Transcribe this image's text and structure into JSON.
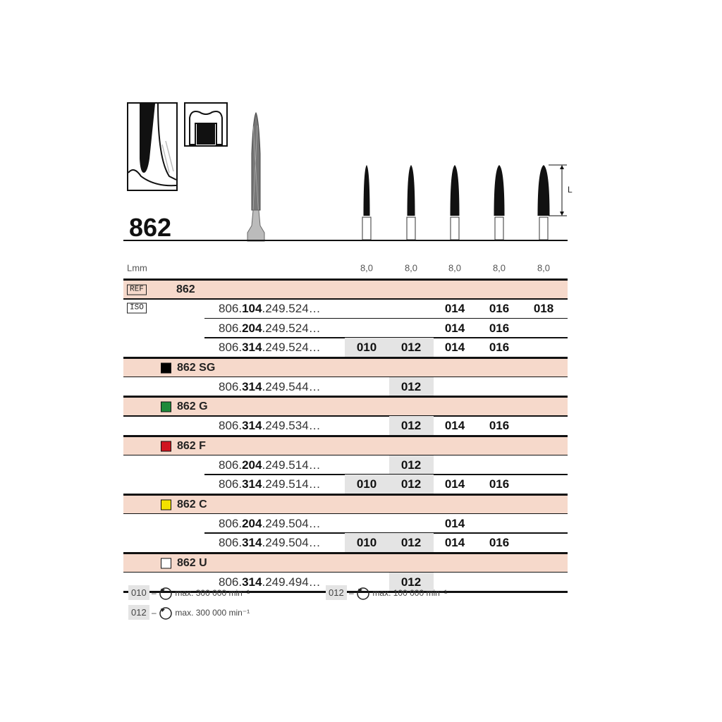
{
  "product": {
    "title": "862",
    "length_label": "L"
  },
  "table": {
    "length_header": "Lmm",
    "lengths": [
      "8,0",
      "8,0",
      "8,0",
      "8,0",
      "8,0"
    ],
    "ref_label": "REF",
    "iso_label": "ISO",
    "groups": [
      {
        "name": "862",
        "color": null,
        "rows": [
          {
            "prefix": "806.",
            "bold": "104",
            "suffix": ".249.524…",
            "sizes": [
              "",
              "",
              "014",
              "016",
              "018"
            ],
            "shaded": []
          },
          {
            "prefix": "806.",
            "bold": "204",
            "suffix": ".249.524…",
            "sizes": [
              "",
              "",
              "014",
              "016",
              ""
            ],
            "shaded": []
          },
          {
            "prefix": "806.",
            "bold": "314",
            "suffix": ".249.524…",
            "sizes": [
              "010",
              "012",
              "014",
              "016",
              ""
            ],
            "shaded": [
              0,
              1
            ]
          }
        ]
      },
      {
        "name": "862 SG",
        "color": "#000000",
        "rows": [
          {
            "prefix": "806.",
            "bold": "314",
            "suffix": ".249.544…",
            "sizes": [
              "",
              "012",
              "",
              "",
              ""
            ],
            "shaded": [
              1
            ]
          }
        ]
      },
      {
        "name": "862 G",
        "color": "#1e8a3a",
        "rows": [
          {
            "prefix": "806.",
            "bold": "314",
            "suffix": ".249.534…",
            "sizes": [
              "",
              "012",
              "014",
              "016",
              ""
            ],
            "shaded": [
              1
            ]
          }
        ]
      },
      {
        "name": "862 F",
        "color": "#d0151f",
        "rows": [
          {
            "prefix": "806.",
            "bold": "204",
            "suffix": ".249.514…",
            "sizes": [
              "",
              "012",
              "",
              "",
              ""
            ],
            "shaded": [
              1
            ]
          },
          {
            "prefix": "806.",
            "bold": "314",
            "suffix": ".249.514…",
            "sizes": [
              "010",
              "012",
              "014",
              "016",
              ""
            ],
            "shaded": [
              0,
              1
            ]
          }
        ]
      },
      {
        "name": "862 C",
        "color": "#f2e200",
        "rows": [
          {
            "prefix": "806.",
            "bold": "204",
            "suffix": ".249.504…",
            "sizes": [
              "",
              "",
              "014",
              "",
              ""
            ],
            "shaded": []
          },
          {
            "prefix": "806.",
            "bold": "314",
            "suffix": ".249.504…",
            "sizes": [
              "010",
              "012",
              "014",
              "016",
              ""
            ],
            "shaded": [
              0,
              1
            ]
          }
        ]
      },
      {
        "name": "862 U",
        "color": "#ffffff",
        "rows": [
          {
            "prefix": "806.",
            "bold": "314",
            "suffix": ".249.494…",
            "sizes": [
              "",
              "012",
              "",
              "",
              ""
            ],
            "shaded": [
              1
            ]
          }
        ]
      }
    ]
  },
  "legend": [
    {
      "size": "010",
      "dash": "–",
      "text": "max. 300 000 min⁻¹"
    },
    {
      "size": "012",
      "dash": "–",
      "text": "max. 100 000 min⁻¹"
    },
    {
      "size": "012",
      "dash": "–",
      "text": "max. 300 000 min⁻¹"
    }
  ],
  "colors": {
    "header_band": "#f6d9cb",
    "shade": "#e4e4e4"
  }
}
